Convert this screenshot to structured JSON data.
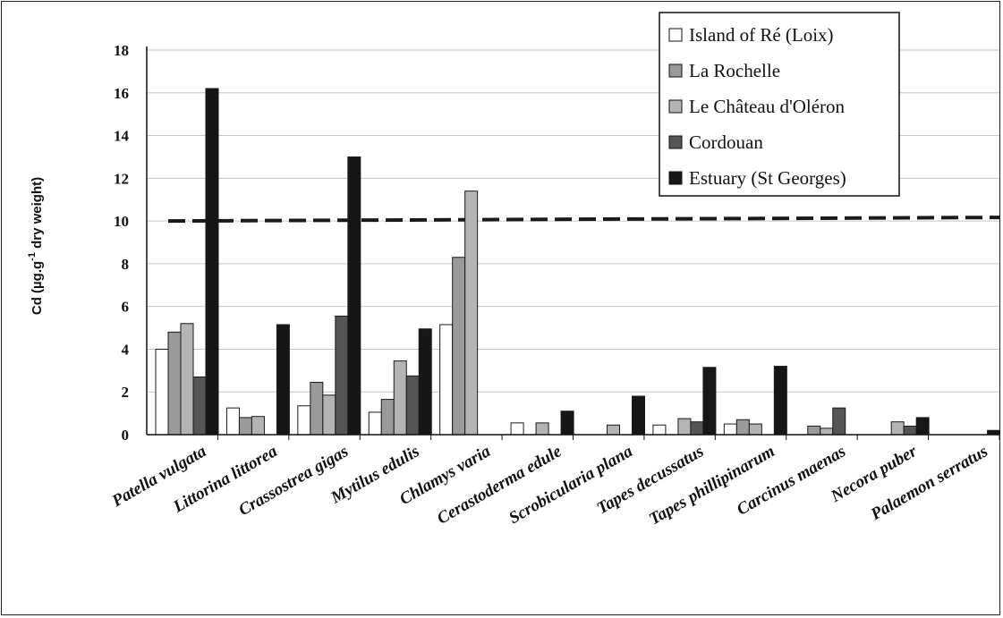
{
  "chart_data": {
    "type": "bar",
    "ylabel_main": "Cd (µg.g",
    "ylabel_sup": "-1",
    "ylabel_rest": " dry weight)",
    "xlabel": "",
    "title": "",
    "ylim": [
      0,
      18
    ],
    "yticks": [
      "0",
      "2",
      "4",
      "6",
      "8",
      "10",
      "12",
      "14",
      "16",
      "18"
    ],
    "grid": true,
    "legend_position": "top-right",
    "reference_line": 10,
    "categories": [
      "Patella vulgata",
      "Littorina littorea",
      "Crassostrea gigas",
      "Mytilus edulis",
      "Chlamys varia",
      "Cerastoderma edule",
      "Scrobicularia plana",
      "Tapes decussatus",
      "Tapes phillipinarum",
      "Carcinus maenas",
      "Necora puber",
      "Palaemon serratus"
    ],
    "series": [
      {
        "name": "Island of Ré (Loix)",
        "color": "#ffffff",
        "values": [
          4.0,
          1.25,
          1.35,
          1.05,
          5.15,
          0.55,
          null,
          0.45,
          0.5,
          null,
          null,
          null
        ]
      },
      {
        "name": "La Rochelle",
        "color": "#9a9a9a",
        "values": [
          4.8,
          0.8,
          2.45,
          1.65,
          8.3,
          null,
          null,
          null,
          0.7,
          0.4,
          null,
          null
        ]
      },
      {
        "name": "Le Château d'Oléron",
        "color": "#b4b4b4",
        "values": [
          5.2,
          0.85,
          1.85,
          3.45,
          11.4,
          0.55,
          0.45,
          0.75,
          0.5,
          0.3,
          0.6,
          null
        ]
      },
      {
        "name": "Cordouan",
        "color": "#555555",
        "values": [
          2.7,
          null,
          5.55,
          2.75,
          null,
          null,
          null,
          0.6,
          null,
          1.25,
          0.4,
          null
        ]
      },
      {
        "name": "Estuary (St Georges)",
        "color": "#161616",
        "values": [
          16.2,
          5.15,
          13.0,
          4.95,
          null,
          1.1,
          1.8,
          3.15,
          3.2,
          null,
          0.8,
          0.2
        ]
      }
    ]
  }
}
